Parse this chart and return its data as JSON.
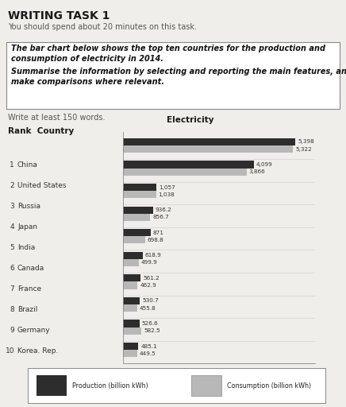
{
  "title_main": "WRITING TASK 1",
  "subtitle": "You should spend about 20 minutes on this task.",
  "box_line1": "The bar chart below shows the top ten countries for the production and",
  "box_line2": "consumption of electricity in 2014.",
  "box_line3": "Summarise the information by selecting and reporting the main features, and",
  "box_line4": "make comparisons where relevant.",
  "write_note": "Write at least 150 words.",
  "countries": [
    "China",
    "United States",
    "Russia",
    "Japan",
    "India",
    "Canada",
    "France",
    "Brazil",
    "Germany",
    "Korea. Rep."
  ],
  "ranks": [
    "1",
    "2",
    "3",
    "4",
    "5",
    "6",
    "7",
    "8",
    "9",
    "10"
  ],
  "production": [
    5398,
    4099,
    1057,
    936.2,
    871,
    618.9,
    561.2,
    530.7,
    526.6,
    485.1
  ],
  "consumption": [
    5322,
    3866,
    1038,
    856.7,
    698.8,
    499.9,
    462.9,
    455.8,
    582.5,
    449.5
  ],
  "production_labels": [
    "5,398",
    "4,099",
    "1,057",
    "936.2",
    "871",
    "618.9",
    "561.2",
    "530.7",
    "526.6",
    "485.1"
  ],
  "consumption_labels": [
    "5,322",
    "3,866",
    "1,038",
    "856.7",
    "698.8",
    "499.9",
    "462.9",
    "455.8",
    "582.5",
    "449.5"
  ],
  "production_color": "#2d2d2d",
  "consumption_color": "#b8b8b8",
  "bar_height": 0.32,
  "xlim": 6000,
  "bg_color": "#f0eeea",
  "legend_prod_label": "Production (billion kWh)",
  "legend_cons_label": "Consumption (billion kWh)"
}
